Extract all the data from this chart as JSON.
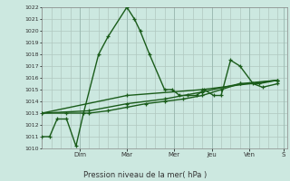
{
  "xlabel": "Pression niveau de la mer( hPa )",
  "background_color": "#cce8e0",
  "grid_color": "#b0c8c0",
  "line_color": "#1a5c1a",
  "ylim": [
    1010,
    1022
  ],
  "ytick_min": 1010,
  "ytick_max": 1022,
  "xlim": [
    0,
    13.0
  ],
  "day_labels": [
    "Dim",
    "Mar",
    "Mer",
    "Jeu",
    "Ven",
    "S"
  ],
  "day_positions": [
    2.0,
    4.5,
    7.0,
    9.0,
    11.0,
    12.8
  ],
  "series": [
    {
      "x": [
        0.0,
        0.4,
        0.8,
        1.3,
        1.8,
        2.2,
        3.0,
        3.5,
        4.5,
        4.9,
        5.2,
        5.7,
        6.5,
        6.9,
        7.3,
        7.7,
        8.2,
        8.6,
        9.1,
        9.5,
        10.0,
        10.5,
        11.2,
        11.7,
        12.5
      ],
      "y": [
        1011,
        1011,
        1012.5,
        1012.5,
        1010.2,
        1013,
        1018,
        1019.5,
        1022,
        1021,
        1020,
        1018,
        1015,
        1015,
        1014.5,
        1014.5,
        1014.5,
        1015,
        1014.5,
        1014.5,
        1017.5,
        1017,
        1015.5,
        1015.2,
        1015.5
      ]
    },
    {
      "x": [
        0.0,
        1.3,
        2.5,
        3.5,
        4.5,
        5.5,
        6.5,
        7.5,
        8.5,
        9.5,
        10.5,
        11.5,
        12.5
      ],
      "y": [
        1013,
        1013,
        1013,
        1013.2,
        1013.5,
        1013.8,
        1014,
        1014.2,
        1014.5,
        1015,
        1015.5,
        1015.5,
        1015.8
      ]
    },
    {
      "x": [
        0.0,
        2.5,
        4.5,
        6.5,
        8.5,
        10.5,
        12.5
      ],
      "y": [
        1013,
        1013.2,
        1013.8,
        1014.2,
        1014.8,
        1015.5,
        1015.8
      ]
    },
    {
      "x": [
        0.0,
        4.5,
        8.5,
        12.5
      ],
      "y": [
        1013,
        1014.5,
        1015,
        1015.8
      ]
    }
  ]
}
